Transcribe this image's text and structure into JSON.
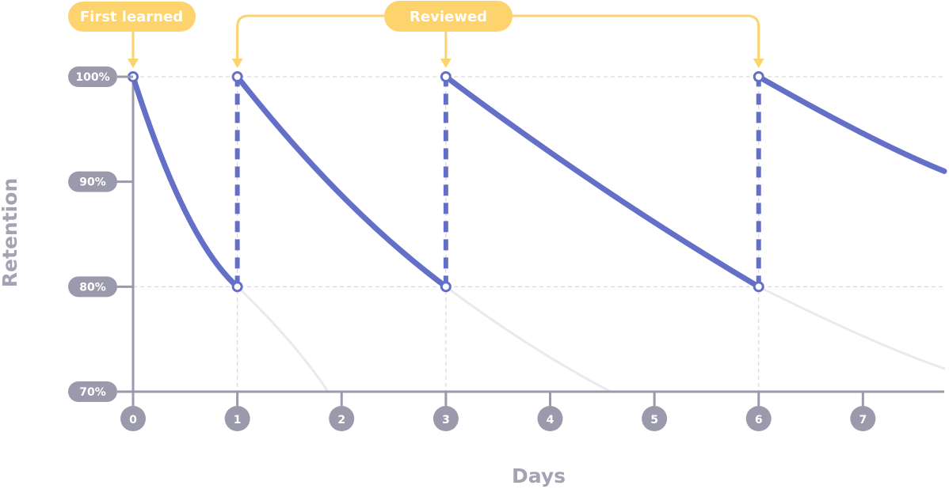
{
  "colors": {
    "curve": "#6470c8",
    "faded": "#e9e9ee",
    "axis": "#9a9aac",
    "grid": "#d0d0da",
    "pill": "#9a9aac",
    "callout": "#fcd36c",
    "callout_text": "#ffffff"
  },
  "chart_data": {
    "type": "line",
    "xlabel": "Days",
    "ylabel": "Retention",
    "xlim": [
      0,
      7.78
    ],
    "ylim": [
      70,
      100
    ],
    "x_ticks": [
      0,
      1,
      2,
      3,
      4,
      5,
      6,
      7
    ],
    "y_ticks": [
      {
        "value": 100,
        "label": "100%"
      },
      {
        "value": 90,
        "label": "90%"
      },
      {
        "value": 80,
        "label": "80%"
      },
      {
        "value": 70,
        "label": "70%"
      }
    ],
    "grid": "dashed at 80% and 100% and at review days",
    "series": [
      {
        "style": "solid",
        "points": [
          [
            0,
            100
          ],
          [
            0.5,
            87.2
          ],
          [
            1,
            80
          ]
        ]
      },
      {
        "style": "solid",
        "points": [
          [
            1,
            100
          ],
          [
            2,
            88.7
          ],
          [
            3,
            80
          ]
        ]
      },
      {
        "style": "solid",
        "points": [
          [
            3,
            100
          ],
          [
            4.5,
            89.4
          ],
          [
            6,
            80
          ]
        ]
      },
      {
        "style": "solid",
        "points": [
          [
            6,
            100
          ],
          [
            7,
            94.6
          ],
          [
            7.78,
            91
          ]
        ]
      },
      {
        "style": "faded",
        "points": [
          [
            1,
            80
          ],
          [
            1.5,
            74.8
          ],
          [
            1.87,
            70
          ]
        ]
      },
      {
        "style": "faded",
        "points": [
          [
            3,
            80
          ],
          [
            3.8,
            74.5
          ],
          [
            4.58,
            70
          ]
        ]
      },
      {
        "style": "faded",
        "points": [
          [
            6,
            80
          ],
          [
            7,
            75.3
          ],
          [
            7.78,
            72.2
          ]
        ]
      },
      {
        "style": "dashed-jump",
        "points": [
          [
            1,
            80
          ],
          [
            1,
            100
          ]
        ]
      },
      {
        "style": "dashed-jump",
        "points": [
          [
            3,
            80
          ],
          [
            3,
            100
          ]
        ]
      },
      {
        "style": "dashed-jump",
        "points": [
          [
            6,
            80
          ],
          [
            6,
            100
          ]
        ]
      }
    ],
    "markers": [
      [
        0,
        100
      ],
      [
        1,
        100
      ],
      [
        1,
        80
      ],
      [
        3,
        100
      ],
      [
        3,
        80
      ],
      [
        6,
        100
      ],
      [
        6,
        80
      ]
    ],
    "annotations": [
      {
        "text": "First learned",
        "targets_x": [
          0
        ]
      },
      {
        "text": "Reviewed",
        "targets_x": [
          1,
          3,
          6
        ]
      }
    ]
  }
}
